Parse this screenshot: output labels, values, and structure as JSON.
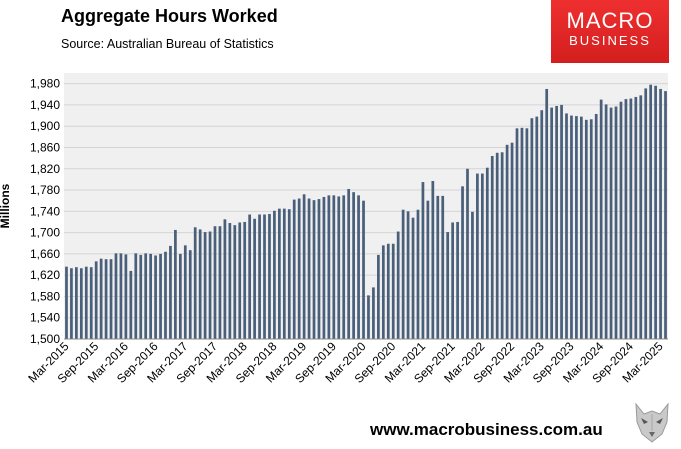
{
  "header": {
    "title": "Aggregate Hours Worked",
    "subtitle": "Source: Australian Bureau of Statistics"
  },
  "logo": {
    "line1": "MACRO",
    "line2": "BUSINESS",
    "color": "#e02727"
  },
  "footer": {
    "url": "www.macrobusiness.com.au",
    "mascot_icon": "wolf-head-icon"
  },
  "chart_data": {
    "type": "bar",
    "ylabel": "Millions",
    "ylim": [
      1500,
      2000
    ],
    "yticks": [
      1500,
      1540,
      1580,
      1620,
      1660,
      1700,
      1740,
      1780,
      1820,
      1860,
      1900,
      1940,
      1980
    ],
    "ytick_labels": [
      "1,500",
      "1,540",
      "1,580",
      "1,620",
      "1,660",
      "1,700",
      "1,740",
      "1,780",
      "1,820",
      "1,860",
      "1,900",
      "1,940",
      "1,980"
    ],
    "x_start": "Mar-2015",
    "x_end": "Mar-2025",
    "xtick_labels": [
      "Mar-2015",
      "Sep-2015",
      "Mar-2016",
      "Sep-2016",
      "Mar-2017",
      "Sep-2017",
      "Mar-2018",
      "Sep-2018",
      "Mar-2019",
      "Sep-2019",
      "Mar-2020",
      "Sep-2020",
      "Mar-2021",
      "Sep-2021",
      "Mar-2022",
      "Sep-2022",
      "Mar-2023",
      "Sep-2023",
      "Mar-2024",
      "Sep-2024",
      "Mar-2025"
    ],
    "bar_color": "#4a5f7a",
    "plot_background": "#f0f0f0",
    "grid": true,
    "values": [
      1636,
      1633,
      1635,
      1633,
      1636,
      1635,
      1646,
      1651,
      1650,
      1650,
      1661,
      1661,
      1659,
      1628,
      1661,
      1658,
      1661,
      1660,
      1657,
      1660,
      1664,
      1675,
      1705,
      1660,
      1676,
      1667,
      1710,
      1706,
      1701,
      1702,
      1712,
      1712,
      1725,
      1718,
      1714,
      1719,
      1720,
      1734,
      1726,
      1734,
      1734,
      1735,
      1741,
      1745,
      1745,
      1744,
      1762,
      1764,
      1772,
      1764,
      1761,
      1763,
      1767,
      1770,
      1770,
      1768,
      1770,
      1782,
      1776,
      1770,
      1760,
      1582,
      1597,
      1658,
      1676,
      1679,
      1679,
      1702,
      1743,
      1740,
      1728,
      1743,
      1795,
      1760,
      1797,
      1769,
      1769,
      1701,
      1719,
      1720,
      1787,
      1820,
      1739,
      1811,
      1811,
      1822,
      1844,
      1850,
      1851,
      1865,
      1869,
      1896,
      1897,
      1896,
      1915,
      1918,
      1930,
      1970,
      1935,
      1938,
      1940,
      1924,
      1920,
      1919,
      1918,
      1912,
      1913,
      1923,
      1950,
      1941,
      1935,
      1937,
      1946,
      1951,
      1952,
      1955,
      1958,
      1971,
      1978,
      1976,
      1970,
      1966
    ]
  }
}
